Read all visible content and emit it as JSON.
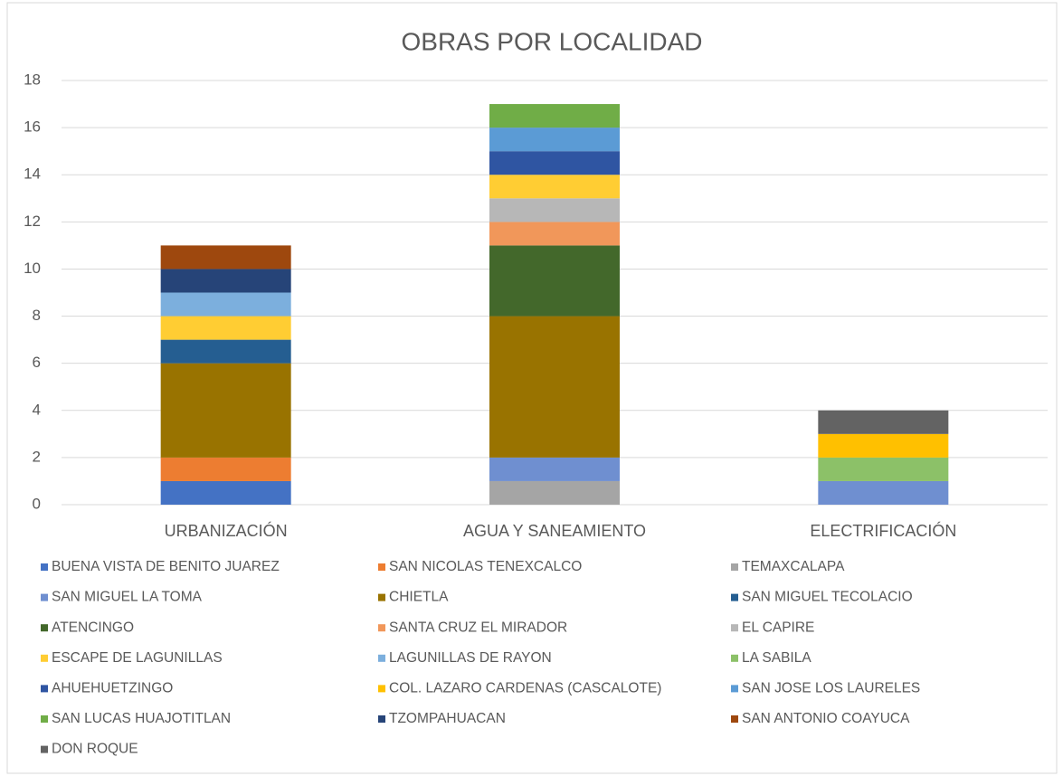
{
  "chart_data": {
    "type": "stacked_bar",
    "title": "OBRAS POR LOCALIDAD",
    "categories": [
      "URBANIZACIÓN",
      "AGUA Y SANEAMIENTO",
      "ELECTRIFICACIÓN"
    ],
    "ylim": [
      0,
      18
    ],
    "yticks": [
      0,
      2,
      4,
      6,
      8,
      10,
      12,
      14,
      16,
      18
    ],
    "grid": true,
    "series": [
      {
        "name": "BUENA VISTA DE BENITO JUAREZ",
        "color": "#4472c4",
        "values": [
          1,
          0,
          0
        ]
      },
      {
        "name": "SAN NICOLAS TENEXCALCO",
        "color": "#ed7d31",
        "values": [
          1,
          0,
          0
        ]
      },
      {
        "name": "TEMAXCALAPA",
        "color": "#a5a5a5",
        "values": [
          0,
          1,
          0
        ]
      },
      {
        "name": "SAN MIGUEL LA TOMA",
        "color": "#6f8fd0",
        "values": [
          0,
          1,
          1
        ]
      },
      {
        "name": "CHIETLA",
        "color": "#997300",
        "values": [
          4,
          6,
          0
        ]
      },
      {
        "name": "SAN MIGUEL TECOLACIO",
        "color": "#255e91",
        "values": [
          1,
          0,
          0
        ]
      },
      {
        "name": "ATENCINGO",
        "color": "#43682b",
        "values": [
          0,
          3,
          0
        ]
      },
      {
        "name": "SANTA CRUZ EL MIRADOR",
        "color": "#f1975a",
        "values": [
          0,
          1,
          0
        ]
      },
      {
        "name": "EL CAPIRE",
        "color": "#b7b7b7",
        "values": [
          0,
          1,
          0
        ]
      },
      {
        "name": "ESCAPE DE LAGUNILLAS",
        "color": "#ffcd33",
        "values": [
          1,
          1,
          0
        ]
      },
      {
        "name": "LAGUNILLAS DE RAYON",
        "color": "#7cafdd",
        "values": [
          1,
          0,
          0
        ]
      },
      {
        "name": "LA SABILA",
        "color": "#8cc168",
        "values": [
          0,
          0,
          1
        ]
      },
      {
        "name": "AHUEHUETZINGO",
        "color": "#2f55a2",
        "values": [
          0,
          1,
          0
        ]
      },
      {
        "name": "COL. LAZARO CARDENAS (CASCALOTE)",
        "color": "#ffc000",
        "values": [
          0,
          0,
          1
        ]
      },
      {
        "name": "SAN JOSE LOS LAURELES",
        "color": "#5b9bd5",
        "values": [
          0,
          1,
          0
        ]
      },
      {
        "name": "SAN LUCAS HUAJOTITLAN",
        "color": "#70ad47",
        "values": [
          0,
          1,
          0
        ]
      },
      {
        "name": "TZOMPAHUACAN",
        "color": "#264478",
        "values": [
          1,
          0,
          0
        ]
      },
      {
        "name": "SAN ANTONIO COAYUCA",
        "color": "#9e480e",
        "values": [
          1,
          0,
          0
        ]
      },
      {
        "name": "DON ROQUE",
        "color": "#636363",
        "values": [
          0,
          0,
          1
        ]
      }
    ]
  }
}
